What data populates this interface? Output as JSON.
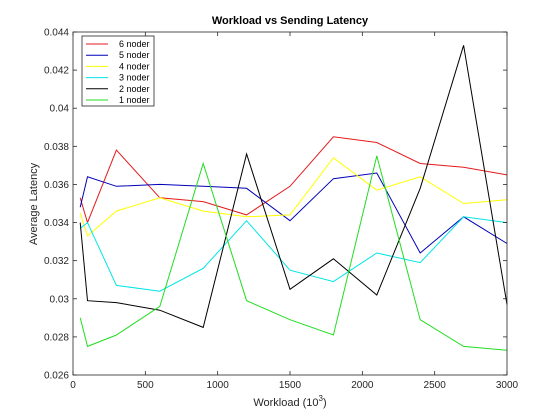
{
  "chart_data": {
    "type": "line",
    "title": "Workload vs Sending Latency",
    "xlabel": "Workload (10",
    "xlabel_sup": "3",
    "xlabel_end": ")",
    "ylabel": "Average Latency",
    "xlim": [
      0,
      3000
    ],
    "ylim": [
      0.026,
      0.044
    ],
    "xticks": [
      0,
      500,
      1000,
      1500,
      2000,
      2500,
      3000
    ],
    "yticks": [
      0.026,
      0.028,
      0.03,
      0.032,
      0.034,
      0.036,
      0.038,
      0.04,
      0.042,
      0.044
    ],
    "xtick_labels": [
      "0",
      "500",
      "1000",
      "1500",
      "2000",
      "2500",
      "3000"
    ],
    "ytick_labels": [
      "0.026",
      "0.028",
      "0.03",
      "0.032",
      "0.034",
      "0.036",
      "0.038",
      "0.04",
      "0.042",
      "0.044"
    ],
    "grid": false,
    "legend_position": "top-left",
    "x": [
      50,
      100,
      300,
      600,
      900,
      1200,
      1500,
      1800,
      2100,
      2400,
      2700,
      3000
    ],
    "series": [
      {
        "name": "6 noder",
        "color": "#e41a1c",
        "values": [
          0.0353,
          0.034,
          0.0378,
          0.0353,
          0.0351,
          0.0344,
          0.0359,
          0.0385,
          0.0382,
          0.0371,
          0.0369,
          0.0365
        ]
      },
      {
        "name": "5 noder",
        "color": "#0000b8",
        "values": [
          0.0348,
          0.0364,
          0.0359,
          0.036,
          0.0359,
          0.0358,
          0.0341,
          0.0363,
          0.0366,
          0.0324,
          0.0343,
          0.0329
        ]
      },
      {
        "name": "4 noder",
        "color": "#ffff00",
        "values": [
          0.0345,
          0.0333,
          0.0346,
          0.0353,
          0.0346,
          0.0343,
          0.0344,
          0.0374,
          0.0357,
          0.0364,
          0.035,
          0.0352
        ]
      },
      {
        "name": "3 noder",
        "color": "#00e5e5",
        "values": [
          0.0337,
          0.034,
          0.0307,
          0.0304,
          0.0316,
          0.0341,
          0.0315,
          0.0309,
          0.0324,
          0.0319,
          0.0343,
          0.034
        ]
      },
      {
        "name": "2 noder",
        "color": "#000000",
        "values": [
          0.034,
          0.0299,
          0.0298,
          0.0294,
          0.0285,
          0.0376,
          0.0305,
          0.0321,
          0.0302,
          0.0358,
          0.0433,
          0.0297
        ]
      },
      {
        "name": "1 noder",
        "color": "#22dd22",
        "values": [
          0.029,
          0.0275,
          0.0281,
          0.0296,
          0.0371,
          0.0299,
          0.0289,
          0.0281,
          0.0375,
          0.0289,
          0.0275,
          0.0273
        ]
      }
    ]
  }
}
